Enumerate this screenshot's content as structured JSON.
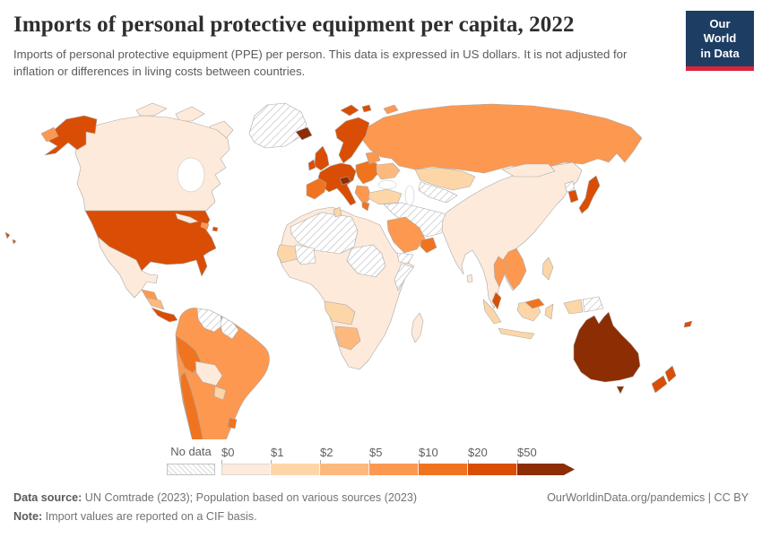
{
  "header": {
    "title": "Imports of personal protective equipment per capita, 2022",
    "subtitle": "Imports of personal protective equipment (PPE) per person. This data is expressed in US dollars. It is not adjusted for inflation or differences in living costs between countries.",
    "logo": {
      "line1": "Our World",
      "line2": "in Data",
      "bg_color": "#1d3d63",
      "stripe_color": "#d7263d"
    }
  },
  "footer": {
    "source_label": "Data source:",
    "source_text": " UN Comtrade (2023); Population based on various sources (2023)",
    "link_text": "OurWorldinData.org/pandemics | CC BY",
    "note_label": "Note:",
    "note_text": " Import values are reported on a CIF basis."
  },
  "chart_data": {
    "type": "choropleth",
    "title": "Imports of personal protective equipment per capita, 2022",
    "unit": "US dollars per person",
    "legend": {
      "no_data_label": "No data",
      "tick_labels": [
        "$0",
        "$1",
        "$2",
        "$5",
        "$10",
        "$20",
        "$50"
      ],
      "position": "bottom-left",
      "no_data_pattern": "diagonal-hatch"
    },
    "bins": [
      {
        "label": "$0–$1",
        "color": "#fdeada"
      },
      {
        "label": "$1–$2",
        "color": "#fdd6a8"
      },
      {
        "label": "$2–$5",
        "color": "#fdb97d"
      },
      {
        "label": "$5–$10",
        "color": "#fd9851"
      },
      {
        "label": "$10–$20",
        "color": "#f0741f"
      },
      {
        "label": "$20–$50",
        "color": "#d94e04"
      },
      {
        "label": ">$50",
        "color": "#8c2d04"
      }
    ],
    "regions": [
      {
        "id": "canada",
        "name": "Canada",
        "bin": 0
      },
      {
        "id": "arctic-islands",
        "name": "Canadian Arctic islands",
        "bin": 0
      },
      {
        "id": "greenland",
        "name": "Greenland",
        "bin": "no-data"
      },
      {
        "id": "alaska",
        "name": "Alaska (United States)",
        "bin": 5
      },
      {
        "id": "usa",
        "name": "United States",
        "bin": 5
      },
      {
        "id": "hawaii",
        "name": "Hawaii (United States)",
        "bin": 5
      },
      {
        "id": "mexico",
        "name": "Mexico",
        "bin": 0
      },
      {
        "id": "guatemala-belize",
        "name": "Guatemala and Belize",
        "bin": 3
      },
      {
        "id": "honduras-nicaragua",
        "name": "Honduras and Nicaragua",
        "bin": 2
      },
      {
        "id": "costa-rica-panama",
        "name": "Costa Rica and Panama",
        "bin": 5
      },
      {
        "id": "cuba",
        "name": "Cuba",
        "bin": 0
      },
      {
        "id": "hispaniola",
        "name": "Dominican Republic and Haiti",
        "bin": 3
      },
      {
        "id": "puerto-rico",
        "name": "Puerto Rico",
        "bin": 5
      },
      {
        "id": "south-america-base",
        "name": "Colombia, Ecuador, Brazil and Argentina",
        "bin": 3
      },
      {
        "id": "venezuela",
        "name": "Venezuela",
        "bin": "no-data"
      },
      {
        "id": "guyanas",
        "name": "Guyana and Suriname",
        "bin": "no-data"
      },
      {
        "id": "peru",
        "name": "Peru",
        "bin": 4
      },
      {
        "id": "bolivia",
        "name": "Bolivia",
        "bin": 0
      },
      {
        "id": "paraguay",
        "name": "Paraguay",
        "bin": 1
      },
      {
        "id": "chile",
        "name": "Chile",
        "bin": 4
      },
      {
        "id": "uruguay",
        "name": "Uruguay",
        "bin": 4
      },
      {
        "id": "iceland",
        "name": "Iceland",
        "bin": 6
      },
      {
        "id": "svalbard",
        "name": "Svalbard (Norway)",
        "bin": 5
      },
      {
        "id": "uk",
        "name": "United Kingdom",
        "bin": 5
      },
      {
        "id": "ireland",
        "name": "Ireland",
        "bin": 5
      },
      {
        "id": "scandinavia",
        "name": "Norway, Sweden and Finland",
        "bin": 5
      },
      {
        "id": "western-europe",
        "name": "France, Germany and Italy",
        "bin": 5
      },
      {
        "id": "alpine",
        "name": "Switzerland and Austria",
        "bin": 6
      },
      {
        "id": "iberia",
        "name": "Spain and Portugal",
        "bin": 4
      },
      {
        "id": "eastern-europe",
        "name": "Poland and Central Europe",
        "bin": 4
      },
      {
        "id": "balkans",
        "name": "Romania and the Balkans",
        "bin": 3
      },
      {
        "id": "greece",
        "name": "Greece",
        "bin": 4
      },
      {
        "id": "ukraine",
        "name": "Ukraine",
        "bin": 2
      },
      {
        "id": "belarus-baltics",
        "name": "Belarus and Baltic states",
        "bin": 3
      },
      {
        "id": "russia",
        "name": "Russia",
        "bin": 3
      },
      {
        "id": "russia-east-tip",
        "name": "Russia (Chukotka)",
        "bin": 3
      },
      {
        "id": "novaya-zemlya",
        "name": "Novaya Zemlya (Russia)",
        "bin": 3
      },
      {
        "id": "kazakhstan",
        "name": "Kazakhstan",
        "bin": 1
      },
      {
        "id": "central-asia",
        "name": "Turkmenistan and Uzbekistan",
        "bin": "no-data"
      },
      {
        "id": "turkey",
        "name": "Turkey",
        "bin": 1
      },
      {
        "id": "middle-east",
        "name": "Iran, Iraq and Syria",
        "bin": "no-data"
      },
      {
        "id": "saudi-arabia",
        "name": "Saudi Arabia",
        "bin": 3
      },
      {
        "id": "uae-oman",
        "name": "United Arab Emirates and Oman",
        "bin": 4
      },
      {
        "id": "yemen",
        "name": "Yemen",
        "bin": "no-data"
      },
      {
        "id": "asia-south",
        "name": "China, India and mainland Asia",
        "bin": 0
      },
      {
        "id": "mongolia",
        "name": "Mongolia",
        "bin": 0
      },
      {
        "id": "sri-lanka",
        "name": "Sri Lanka",
        "bin": 0
      },
      {
        "id": "vietnam-laos",
        "name": "Vietnam and Laos",
        "bin": 3
      },
      {
        "id": "thailand",
        "name": "Thailand",
        "bin": 3
      },
      {
        "id": "malaysia-peninsula",
        "name": "Malaysia (peninsular)",
        "bin": 5
      },
      {
        "id": "borneo-malaysia",
        "name": "Malaysia (Borneo)",
        "bin": 4
      },
      {
        "id": "north-korea",
        "name": "North Korea",
        "bin": "no-data"
      },
      {
        "id": "south-korea",
        "name": "South Korea",
        "bin": 5
      },
      {
        "id": "japan",
        "name": "Japan",
        "bin": 5
      },
      {
        "id": "indonesia",
        "name": "Indonesia",
        "bin": 1
      },
      {
        "id": "philippines",
        "name": "Philippines",
        "bin": 1
      },
      {
        "id": "new-guinea-west",
        "name": "Papua (Indonesia)",
        "bin": 1
      },
      {
        "id": "new-guinea-east",
        "name": "Papua New Guinea",
        "bin": "no-data"
      },
      {
        "id": "africa-base",
        "name": "Africa (most countries)",
        "bin": 0
      },
      {
        "id": "algeria-libya",
        "name": "Algeria and Libya",
        "bin": "no-data"
      },
      {
        "id": "mali",
        "name": "Mali",
        "bin": "no-data"
      },
      {
        "id": "chad-sudan",
        "name": "Chad and Sudan",
        "bin": "no-data"
      },
      {
        "id": "somalia",
        "name": "Somalia",
        "bin": "no-data"
      },
      {
        "id": "mauritania-senegal",
        "name": "Mauritania and Senegal",
        "bin": 1
      },
      {
        "id": "angola-zambia",
        "name": "Angola and Zambia",
        "bin": 1
      },
      {
        "id": "namibia-botswana",
        "name": "Namibia and Botswana",
        "bin": 2
      },
      {
        "id": "madagascar",
        "name": "Madagascar",
        "bin": 0
      },
      {
        "id": "tunisia",
        "name": "Tunisia",
        "bin": 1
      },
      {
        "id": "australia",
        "name": "Australia",
        "bin": 6
      },
      {
        "id": "tasmania",
        "name": "Tasmania (Australia)",
        "bin": 6
      },
      {
        "id": "new-zealand",
        "name": "New Zealand",
        "bin": 5
      },
      {
        "id": "fiji",
        "name": "Fiji",
        "bin": 5
      }
    ]
  }
}
